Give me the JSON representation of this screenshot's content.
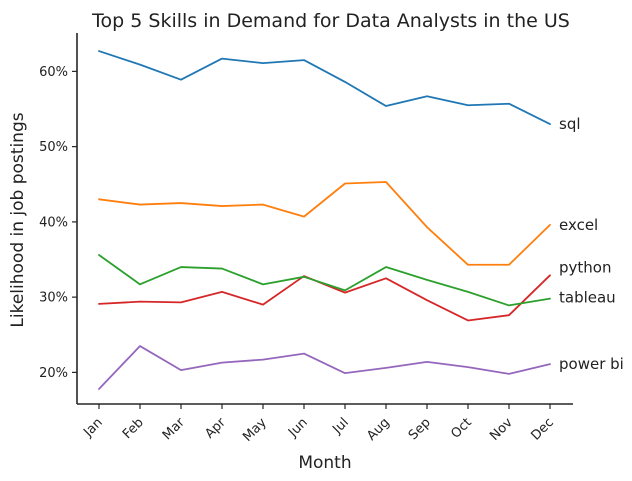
{
  "chart_data": {
    "type": "line",
    "title": "Top 5 Skills in Demand for Data Analysts in the US",
    "xlabel": "Month",
    "ylabel": "Likelihood in job postings",
    "categories": [
      "Jan",
      "Feb",
      "Mar",
      "Apr",
      "May",
      "Jun",
      "Jul",
      "Aug",
      "Sep",
      "Oct",
      "Nov",
      "Dec"
    ],
    "ylim": [
      15.8,
      65.1
    ],
    "yticks": [
      20,
      30,
      40,
      50,
      60
    ],
    "ytick_labels": [
      "20%",
      "30%",
      "40%",
      "50%",
      "60%"
    ],
    "grid": false,
    "legend": "inline labels at line ends (right)",
    "series": [
      {
        "name": "sql",
        "color": "#1f77b4",
        "values": [
          62.7,
          60.9,
          58.9,
          61.7,
          61.1,
          61.5,
          58.6,
          55.4,
          56.7,
          55.5,
          55.7,
          53.0
        ]
      },
      {
        "name": "excel",
        "color": "#ff7f0e",
        "values": [
          43.0,
          42.3,
          42.5,
          42.1,
          42.3,
          40.7,
          45.1,
          45.3,
          39.3,
          34.3,
          34.3,
          39.6
        ]
      },
      {
        "name": "python",
        "color": "#d62728",
        "values": [
          29.1,
          29.4,
          29.3,
          30.7,
          29.0,
          32.8,
          30.6,
          32.5,
          29.6,
          26.9,
          27.6,
          32.9
        ]
      },
      {
        "name": "tableau",
        "color": "#2ca02c",
        "values": [
          35.6,
          31.7,
          34.0,
          33.8,
          31.7,
          32.7,
          30.9,
          34.0,
          32.3,
          30.7,
          28.9,
          29.8
        ]
      },
      {
        "name": "power bi",
        "color": "#9467bd",
        "values": [
          17.8,
          23.5,
          20.3,
          21.3,
          21.7,
          22.5,
          19.9,
          20.6,
          21.4,
          20.7,
          19.8,
          21.1
        ]
      }
    ]
  }
}
